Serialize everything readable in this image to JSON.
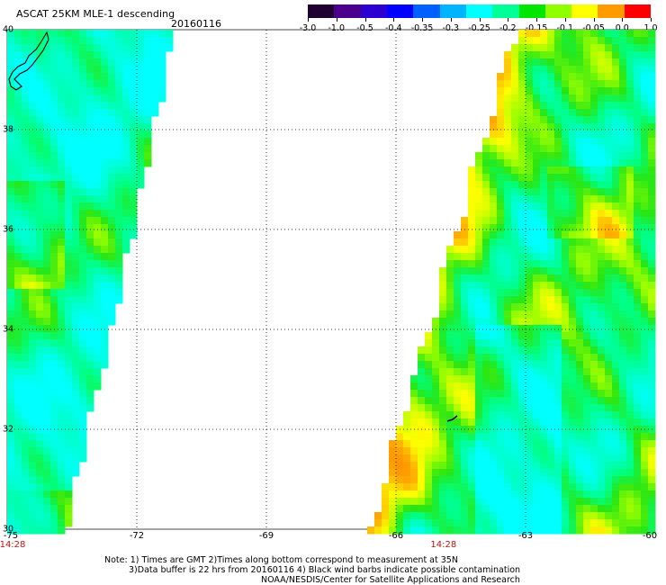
{
  "title": "ASCAT 25KM MLE-1 descending",
  "date": "20160116",
  "colorbar": {
    "tick_labels": [
      "-3.0",
      "-1.0",
      "-0.5",
      "-0.4",
      "-0.35",
      "-0.3",
      "-0.25",
      "-0.2",
      "-0.15",
      "-0.1",
      "-0.05",
      "0.0",
      "1.0"
    ],
    "colors": [
      "#200030",
      "#4a008c",
      "#2c00d0",
      "#0000ff",
      "#0060ff",
      "#00b4ff",
      "#00ffff",
      "#00ff96",
      "#00e600",
      "#90ff00",
      "#ffff00",
      "#ff9a00",
      "#ff0000"
    ]
  },
  "map": {
    "lon_range": [
      -75,
      -60
    ],
    "lat_range": [
      30,
      40
    ],
    "lat_labels": [
      "40",
      "38",
      "36",
      "34",
      "32",
      "30"
    ],
    "lon_labels": [
      "-75",
      "-72",
      "-69",
      "-66",
      "-63",
      "-60"
    ],
    "time_labels": [
      {
        "lon": -75,
        "text": "14:28"
      },
      {
        "lon": -64.9,
        "text": "14:28"
      }
    ]
  },
  "notes": [
    "Note: 1) Times are GMT 2)Times along bottom correspond to measurement at 35N",
    "3)Data buffer is 22 hrs from 20160116 4) Black wind barbs indicate possible contamination",
    "NOAA/NESDIS/Center for Satellite Applications and Research"
  ]
}
